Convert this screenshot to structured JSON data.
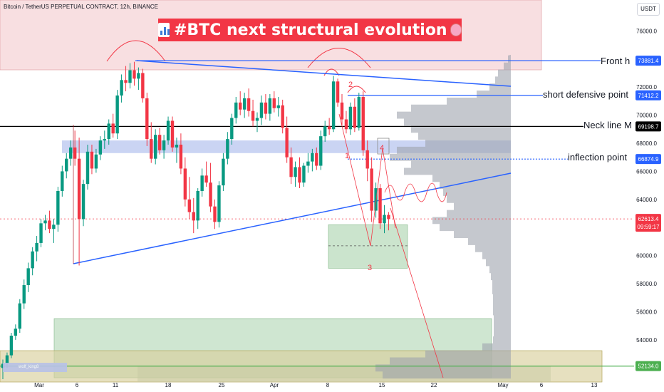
{
  "header": {
    "symbol": "Bitcoin / TetherUS PERPETUAL CONTRACT, 12h, BINANCE",
    "currency": "USDT",
    "title": "#BTC next structural evolution",
    "title_icon": "bar-chart-icon",
    "title_emoji": "brain-icon",
    "watermark": "wolf_king8"
  },
  "chart_data": {
    "type": "candlestick",
    "instrument": "BTCUSDT.P",
    "ylim": [
      51000,
      78200
    ],
    "y_ticks": [
      54000,
      56000,
      58000,
      60000,
      62000,
      64000,
      66000,
      68000,
      70000,
      72000,
      74000,
      76000
    ],
    "x_ticks": [
      "Mar",
      "6",
      "11",
      "18",
      "25",
      "Apr",
      "8",
      "15",
      "22",
      "May",
      "6",
      "13"
    ],
    "levels": [
      {
        "label": "Front h",
        "price": 73881.4,
        "price_label": "73881.4",
        "color": "#2962ff",
        "style": "solid"
      },
      {
        "label": "short defensive point",
        "price": 71412.2,
        "price_label": "71412.2",
        "color": "#2962ff",
        "style": "solid"
      },
      {
        "label": "Neck line M",
        "price": 69198.7,
        "price_label": "69198.7",
        "color": "#000000",
        "style": "solid"
      },
      {
        "label": "inflection point",
        "price": 66874.9,
        "price_label": "66874.9",
        "color": "#2962ff",
        "style": "dotted"
      }
    ],
    "current_price": {
      "value": 62613.4,
      "label": "62613.4",
      "countdown": "09:59:17",
      "color": "#f23645"
    },
    "support": {
      "value": 52134.0,
      "label": "52134.0",
      "color": "#4caf50"
    },
    "wave_labels": [
      "1",
      "2",
      "3",
      "4"
    ],
    "candles": [
      [
        52000,
        52600,
        51200,
        52300
      ],
      [
        52300,
        53100,
        52000,
        52900
      ],
      [
        52900,
        54500,
        52700,
        54300
      ],
      [
        54300,
        55100,
        54000,
        54800
      ],
      [
        54800,
        56900,
        54500,
        56600
      ],
      [
        56600,
        58300,
        56200,
        57900
      ],
      [
        57900,
        59500,
        57400,
        59100
      ],
      [
        59100,
        60600,
        58600,
        60300
      ],
      [
        60300,
        61400,
        59600,
        60900
      ],
      [
        60900,
        62600,
        60600,
        62300
      ],
      [
        62300,
        62900,
        61800,
        62500
      ],
      [
        62500,
        63200,
        61600,
        61900
      ],
      [
        61900,
        62600,
        60900,
        62200
      ],
      [
        62200,
        64900,
        61700,
        64600
      ],
      [
        64600,
        66400,
        64200,
        66000
      ],
      [
        66000,
        67300,
        65500,
        66900
      ],
      [
        66900,
        68200,
        66400,
        67700
      ],
      [
        67700,
        68900,
        66400,
        66900
      ],
      [
        66900,
        68400,
        59300,
        62600
      ],
      [
        62600,
        65400,
        62100,
        65100
      ],
      [
        65100,
        67900,
        64700,
        67400
      ],
      [
        67400,
        67900,
        65800,
        66200
      ],
      [
        66200,
        67600,
        65900,
        67200
      ],
      [
        67200,
        68500,
        66800,
        68200
      ],
      [
        68200,
        68900,
        67600,
        68300
      ],
      [
        68300,
        69700,
        67900,
        69400
      ],
      [
        69400,
        70100,
        68400,
        68700
      ],
      [
        68700,
        71800,
        68300,
        71400
      ],
      [
        71400,
        72900,
        70900,
        72500
      ],
      [
        72500,
        73500,
        71700,
        72300
      ],
      [
        72300,
        73700,
        71900,
        73200
      ],
      [
        73200,
        73800,
        72100,
        72600
      ],
      [
        72600,
        73400,
        71800,
        73000
      ],
      [
        73000,
        73300,
        70900,
        71200
      ],
      [
        71200,
        71600,
        67800,
        68300
      ],
      [
        68300,
        69500,
        66600,
        66900
      ],
      [
        66900,
        69000,
        66500,
        68600
      ],
      [
        68600,
        69100,
        67200,
        67500
      ],
      [
        67500,
        68600,
        66900,
        68200
      ],
      [
        68200,
        69900,
        67900,
        69600
      ],
      [
        69600,
        69900,
        67400,
        67700
      ],
      [
        67700,
        68400,
        66600,
        67900
      ],
      [
        67900,
        68700,
        65800,
        66200
      ],
      [
        66200,
        67000,
        63500,
        64000
      ],
      [
        64000,
        65600,
        62600,
        63100
      ],
      [
        63100,
        64100,
        61600,
        62500
      ],
      [
        62500,
        64800,
        61900,
        64600
      ],
      [
        64600,
        66200,
        64200,
        65700
      ],
      [
        65700,
        66700,
        64900,
        65200
      ],
      [
        65200,
        66600,
        63100,
        63500
      ],
      [
        63500,
        64000,
        61900,
        62400
      ],
      [
        62400,
        65300,
        62000,
        65000
      ],
      [
        65000,
        67300,
        64600,
        66900
      ],
      [
        66900,
        68800,
        66500,
        68300
      ],
      [
        68300,
        70100,
        67900,
        69800
      ],
      [
        69800,
        71300,
        69400,
        70900
      ],
      [
        70900,
        71700,
        70000,
        70400
      ],
      [
        70400,
        71600,
        69800,
        71200
      ],
      [
        71200,
        71900,
        69900,
        70300
      ],
      [
        70300,
        71100,
        69200,
        69600
      ],
      [
        69600,
        70200,
        68800,
        69800
      ],
      [
        69800,
        71400,
        69300,
        70900
      ],
      [
        70900,
        71500,
        69700,
        70100
      ],
      [
        70100,
        71500,
        69600,
        71200
      ],
      [
        71200,
        71700,
        70200,
        70500
      ],
      [
        70500,
        71300,
        69900,
        70700
      ],
      [
        70700,
        71100,
        68700,
        69100
      ],
      [
        69100,
        69900,
        66600,
        67000
      ],
      [
        67000,
        67700,
        65100,
        65600
      ],
      [
        65600,
        66700,
        64900,
        66300
      ],
      [
        66300,
        67000,
        64800,
        65200
      ],
      [
        65200,
        66600,
        64900,
        66400
      ],
      [
        66400,
        67300,
        65900,
        66700
      ],
      [
        66700,
        67600,
        66000,
        67300
      ],
      [
        67300,
        67700,
        66100,
        66400
      ],
      [
        66400,
        68900,
        66100,
        68500
      ],
      [
        68500,
        69600,
        68100,
        69200
      ],
      [
        69200,
        69800,
        68600,
        69000
      ],
      [
        69000,
        72800,
        68800,
        72400
      ],
      [
        72400,
        72600,
        70600,
        70900
      ],
      [
        70900,
        71500,
        69300,
        69700
      ],
      [
        69700,
        70300,
        68700,
        69000
      ],
      [
        69000,
        70900,
        68600,
        70600
      ],
      [
        70600,
        71200,
        68800,
        69100
      ],
      [
        69100,
        71600,
        68900,
        71300
      ],
      [
        71300,
        71700,
        67100,
        67500
      ],
      [
        67500,
        68200,
        65300,
        66200
      ],
      [
        66200,
        67000,
        62400,
        63200
      ],
      [
        63200,
        65200,
        62700,
        64800
      ],
      [
        64800,
        65100,
        61900,
        62300
      ],
      [
        62300,
        63600,
        61600,
        62900
      ],
      [
        62900,
        63100,
        61800,
        62600
      ]
    ],
    "annotations": [
      "M-top arc over Mar 13 high",
      "M-top arc over Apr 8 high",
      "descending trendline from Mar 14 high",
      "ascending trendline from Mar 5 low",
      "projected wave path to 52134 zone"
    ],
    "grid": false
  }
}
